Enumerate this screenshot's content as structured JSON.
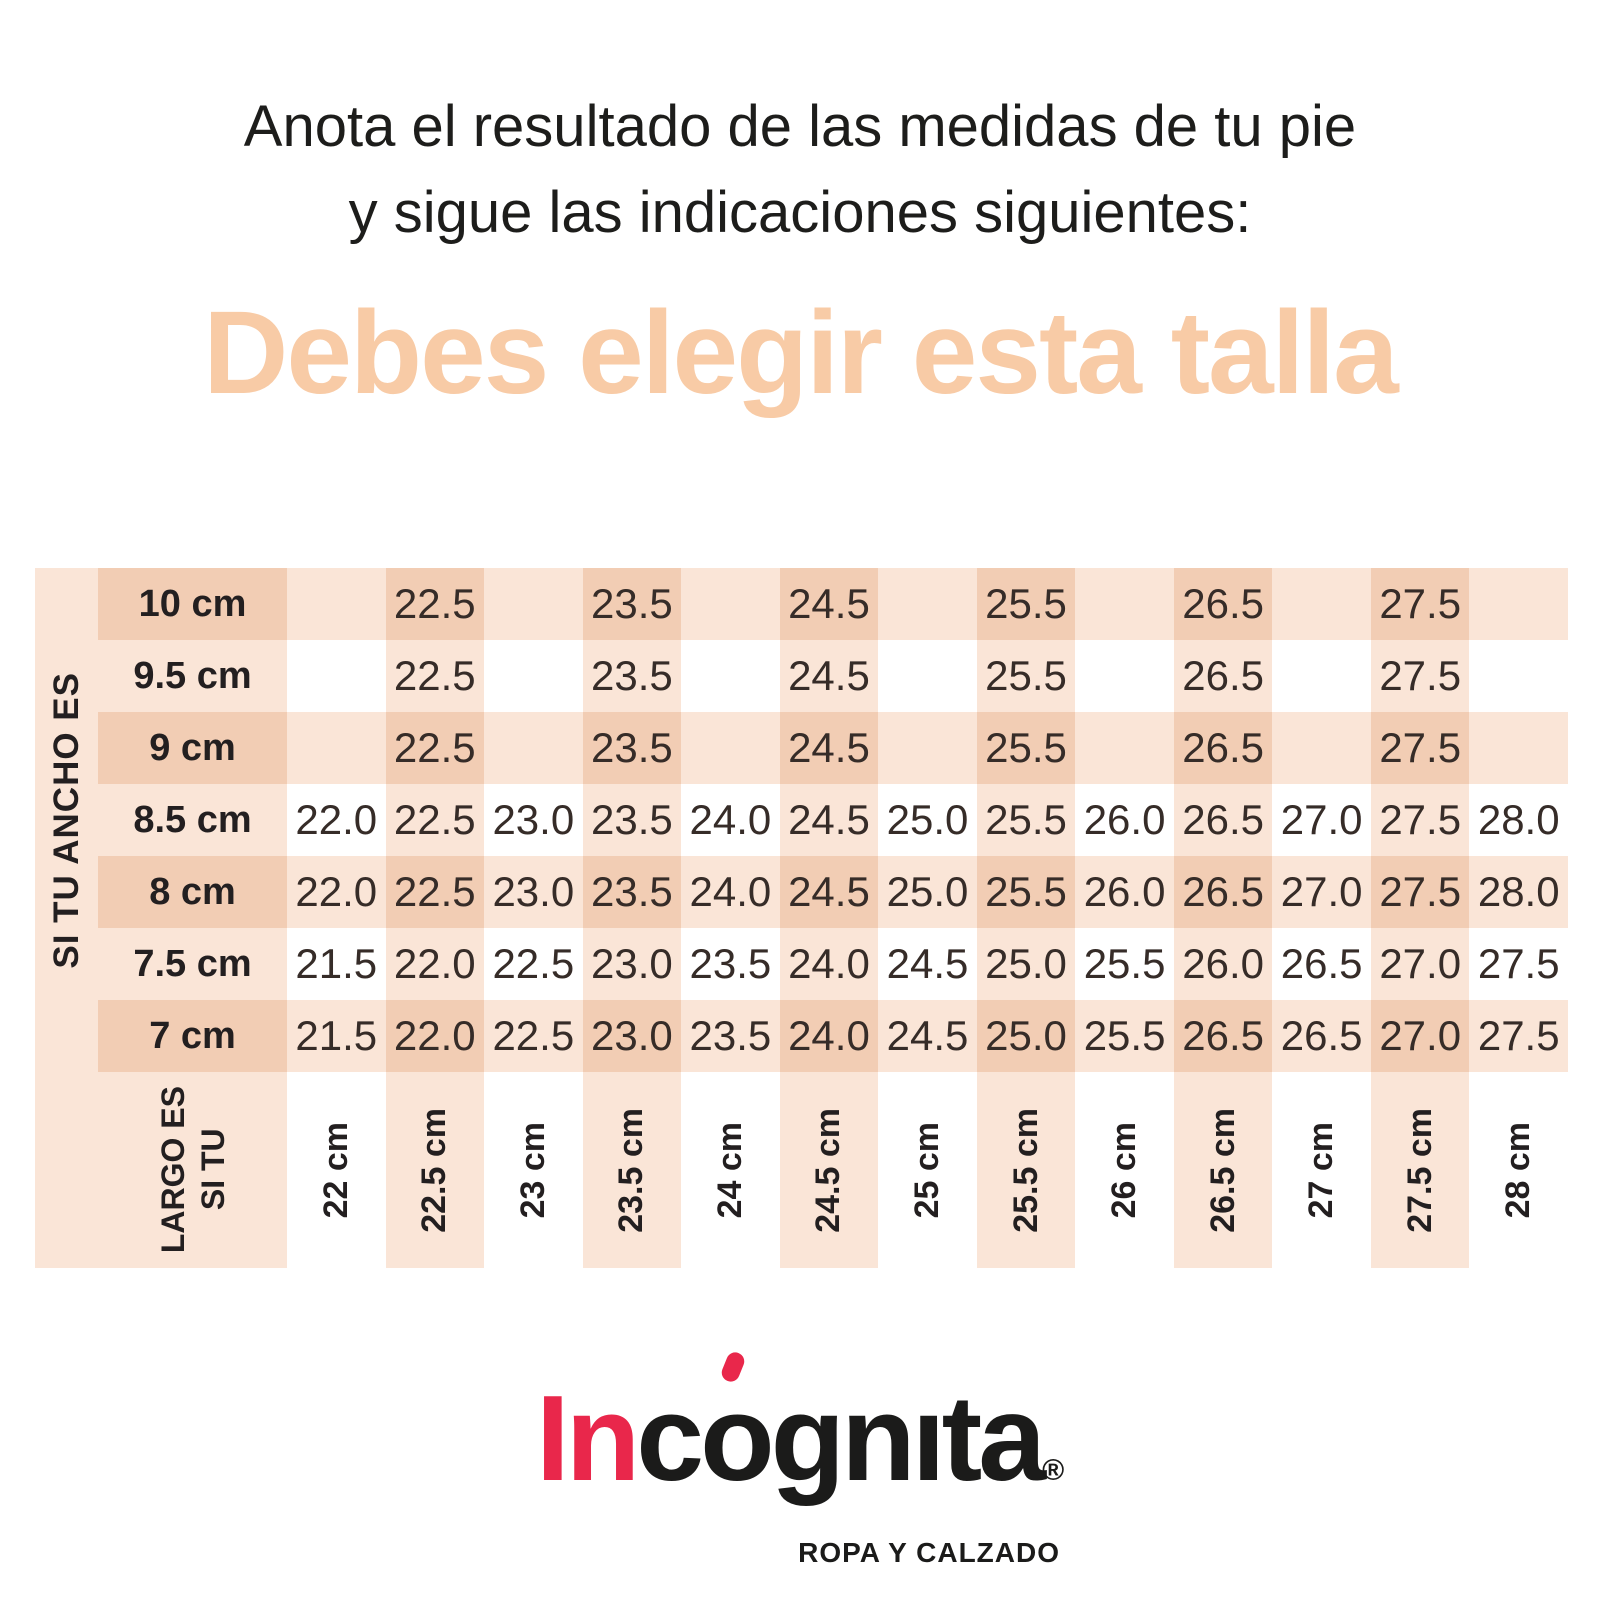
{
  "header": {
    "line1": "Anota el resultado de las medidas de tu pie",
    "line2": "y sigue las indicaciones siguientes:"
  },
  "hero": {
    "title": "Debes elegir esta talla",
    "color": "#f8cba6"
  },
  "table": {
    "ancho_axis_label": "SI TU ANCHO ES",
    "largo_axis_label_lines": [
      "SI TU",
      "LARGO ES"
    ],
    "row_labels": [
      "10 cm",
      "9.5 cm",
      "9 cm",
      "8.5 cm",
      "8 cm",
      "7.5 cm",
      "7 cm"
    ],
    "column_labels": [
      "22 cm",
      "22.5 cm",
      "23 cm",
      "23.5 cm",
      "24 cm",
      "24.5 cm",
      "25 cm",
      "25.5 cm",
      "26 cm",
      "26.5 cm",
      "27 cm",
      "27.5 cm",
      "28 cm"
    ],
    "colors": {
      "light": "#fae5d7",
      "dark": "#f2cdb4",
      "white": "#ffffff"
    }
  },
  "chart_data": {
    "type": "table",
    "title": "Debes elegir esta talla",
    "x_axis_label": "SI TU LARGO ES",
    "y_axis_label": "SI TU ANCHO ES",
    "columns_largo_cm": [
      22,
      22.5,
      23,
      23.5,
      24,
      24.5,
      25,
      25.5,
      26,
      26.5,
      27,
      27.5,
      28
    ],
    "rows_ancho_cm": [
      10,
      9.5,
      9,
      8.5,
      8,
      7.5,
      7
    ],
    "values": [
      [
        "",
        "22.5",
        "",
        "23.5",
        "",
        "24.5",
        "",
        "25.5",
        "",
        "26.5",
        "",
        "27.5",
        ""
      ],
      [
        "",
        "22.5",
        "",
        "23.5",
        "",
        "24.5",
        "",
        "25.5",
        "",
        "26.5",
        "",
        "27.5",
        ""
      ],
      [
        "",
        "22.5",
        "",
        "23.5",
        "",
        "24.5",
        "",
        "25.5",
        "",
        "26.5",
        "",
        "27.5",
        ""
      ],
      [
        "22.0",
        "22.5",
        "23.0",
        "23.5",
        "24.0",
        "24.5",
        "25.0",
        "25.5",
        "26.0",
        "26.5",
        "27.0",
        "27.5",
        "28.0"
      ],
      [
        "22.0",
        "22.5",
        "23.0",
        "23.5",
        "24.0",
        "24.5",
        "25.0",
        "25.5",
        "26.0",
        "26.5",
        "27.0",
        "27.5",
        "28.0"
      ],
      [
        "21.5",
        "22.0",
        "22.5",
        "23.0",
        "23.5",
        "24.0",
        "24.5",
        "25.0",
        "25.5",
        "26.0",
        "26.5",
        "27.0",
        "27.5"
      ],
      [
        "21.5",
        "22.0",
        "22.5",
        "23.0",
        "23.5",
        "24.0",
        "24.5",
        "25.0",
        "25.5",
        "26.5",
        "26.5",
        "27.0",
        "27.5"
      ]
    ],
    "grid": "gingham shading, peach stripes on 0.5 cm columns and on rows 10/9/8/7 cm",
    "legend_position": "none"
  },
  "logo": {
    "brand_red": "In",
    "brand_c": "c",
    "brand_o": "o",
    "brand_rest": "gnıta",
    "registered": "®",
    "tagline": "ROPA Y CALZADO",
    "red": "#e9274b"
  }
}
